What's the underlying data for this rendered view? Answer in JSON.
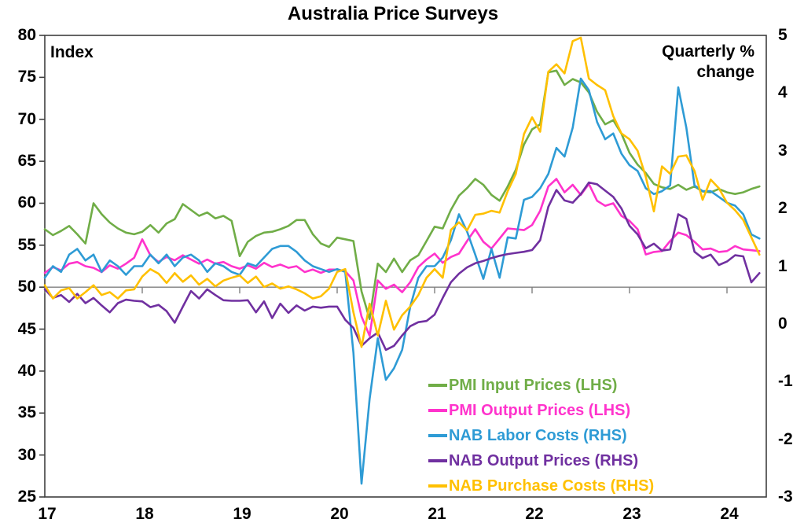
{
  "title": "Australia Price Surveys",
  "left_axis_corner_label": "Index",
  "right_axis_corner_label": "Quarterly % change",
  "chart_data": {
    "type": "line",
    "title": "Australia Price Surveys",
    "x_description": "Monthly observations, Jan 2017 to May 2024",
    "x_tick_labels": [
      "17",
      "18",
      "19",
      "20",
      "21",
      "22",
      "23",
      "24"
    ],
    "left_axis": {
      "label": "Index",
      "min": 25,
      "max": 80,
      "ticks": [
        25,
        30,
        35,
        40,
        45,
        50,
        55,
        60,
        65,
        70,
        75,
        80
      ]
    },
    "right_axis": {
      "label": "Quarterly % change",
      "min": -3,
      "max": 5,
      "ticks": [
        -3,
        -2,
        -1,
        0,
        1,
        2,
        3,
        4,
        5
      ]
    },
    "baseline_left_value": 50,
    "grid": "off",
    "legend_position": "inside-lower-right",
    "series": [
      {
        "name": "PMI Input Prices (LHS)",
        "axis": "left",
        "color": "#70AD47",
        "values": [
          56.9,
          56.2,
          56.7,
          57.3,
          56.3,
          55.2,
          60.0,
          58.7,
          57.7,
          57.0,
          56.5,
          56.3,
          56.6,
          57.4,
          56.5,
          57.6,
          58.1,
          59.9,
          59.2,
          58.5,
          58.9,
          58.2,
          58.5,
          57.9,
          53.7,
          55.4,
          56.1,
          56.5,
          56.6,
          56.9,
          57.3,
          58.0,
          58.0,
          56.3,
          55.2,
          54.8,
          55.9,
          55.7,
          55.5,
          49.5,
          46.2,
          52.8,
          51.8,
          53.4,
          51.8,
          53.2,
          53.8,
          55.5,
          57.2,
          57.0,
          59.2,
          60.9,
          61.8,
          62.9,
          62.2,
          61.0,
          60.3,
          62.0,
          64.0,
          67.0,
          68.8,
          69.4,
          75.6,
          75.8,
          74.1,
          74.8,
          74.4,
          73.2,
          70.9,
          69.4,
          69.9,
          68.3,
          66.0,
          64.6,
          63.6,
          62.3,
          61.9,
          61.7,
          62.2,
          61.6,
          62.0,
          61.4,
          61.3,
          61.7,
          61.3,
          61.1,
          61.3,
          61.7,
          62.0
        ]
      },
      {
        "name": "PMI Output Prices (LHS)",
        "axis": "left",
        "color": "#FF33CC",
        "values": [
          51.7,
          52.4,
          52.0,
          52.8,
          53.0,
          52.5,
          52.3,
          51.8,
          52.6,
          52.2,
          52.8,
          53.5,
          55.7,
          53.8,
          53.0,
          53.6,
          53.2,
          53.8,
          53.3,
          52.8,
          53.3,
          52.8,
          53.0,
          52.5,
          52.2,
          52.6,
          52.2,
          52.9,
          52.4,
          52.7,
          52.3,
          52.5,
          51.8,
          52.1,
          51.7,
          52.1,
          52.1,
          51.9,
          50.8,
          46.5,
          44.2,
          50.8,
          49.8,
          50.3,
          49.4,
          50.6,
          52.4,
          53.3,
          54.0,
          52.9,
          53.6,
          54.0,
          55.5,
          56.9,
          55.4,
          54.6,
          55.8,
          57.0,
          56.9,
          56.8,
          57.4,
          59.1,
          62.0,
          62.9,
          61.3,
          62.2,
          61.0,
          62.3,
          60.3,
          59.7,
          60.0,
          58.5,
          57.9,
          56.9,
          53.9,
          54.2,
          54.3,
          55.5,
          56.5,
          56.2,
          55.4,
          54.5,
          54.6,
          54.2,
          54.3,
          54.9,
          54.5,
          54.4,
          54.3
        ]
      },
      {
        "name": "NAB Labor Costs (RHS)",
        "axis": "right",
        "color": "#2E9BD5",
        "values": [
          0.8,
          1.0,
          0.9,
          1.2,
          1.3,
          1.1,
          1.2,
          0.9,
          1.1,
          1.0,
          0.85,
          1.0,
          1.0,
          1.2,
          1.05,
          1.2,
          1.0,
          1.15,
          1.2,
          1.1,
          0.9,
          1.05,
          1.0,
          0.9,
          0.85,
          1.05,
          1.0,
          1.15,
          1.3,
          1.35,
          1.35,
          1.25,
          1.1,
          1.0,
          0.95,
          0.9,
          0.95,
          0.9,
          -0.5,
          -2.77,
          -1.3,
          -0.25,
          -0.97,
          -0.77,
          -0.45,
          0.3,
          0.8,
          1.0,
          1.0,
          1.15,
          1.45,
          1.9,
          1.6,
          1.2,
          0.78,
          1.3,
          0.8,
          1.5,
          1.48,
          2.15,
          2.2,
          2.35,
          2.6,
          3.05,
          2.9,
          3.4,
          4.25,
          4.05,
          3.5,
          3.2,
          3.3,
          2.95,
          2.75,
          2.65,
          2.35,
          2.25,
          2.3,
          2.4,
          4.1,
          3.4,
          2.4,
          2.3,
          2.3,
          2.2,
          2.1,
          2.05,
          1.9,
          1.55,
          1.48
        ]
      },
      {
        "name": "NAB Output Prices (RHS)",
        "axis": "right",
        "color": "#7030A0",
        "values": [
          0.6,
          0.45,
          0.5,
          0.38,
          0.52,
          0.36,
          0.45,
          0.32,
          0.2,
          0.36,
          0.42,
          0.4,
          0.39,
          0.29,
          0.33,
          0.22,
          0.02,
          0.3,
          0.57,
          0.44,
          0.6,
          0.5,
          0.41,
          0.4,
          0.4,
          0.41,
          0.2,
          0.39,
          0.1,
          0.35,
          0.19,
          0.32,
          0.23,
          0.3,
          0.28,
          0.3,
          0.3,
          0.07,
          -0.07,
          -0.38,
          -0.25,
          -0.15,
          -0.45,
          -0.38,
          -0.2,
          -0.04,
          0.03,
          0.05,
          0.16,
          0.45,
          0.72,
          0.87,
          0.98,
          1.05,
          1.09,
          1.14,
          1.18,
          1.21,
          1.23,
          1.25,
          1.28,
          1.45,
          2.03,
          2.32,
          2.14,
          2.1,
          2.25,
          2.45,
          2.42,
          2.31,
          2.2,
          2.0,
          1.7,
          1.55,
          1.31,
          1.39,
          1.27,
          1.29,
          1.9,
          1.82,
          1.25,
          1.14,
          1.2,
          1.02,
          1.08,
          1.19,
          1.17,
          0.72,
          0.88
        ]
      },
      {
        "name": "NAB Purchase Costs (RHS)",
        "axis": "right",
        "color": "#FFC000",
        "values": [
          0.67,
          0.44,
          0.58,
          0.62,
          0.44,
          0.55,
          0.67,
          0.5,
          0.55,
          0.44,
          0.58,
          0.6,
          0.82,
          0.95,
          0.87,
          0.71,
          0.88,
          0.73,
          0.84,
          0.68,
          0.78,
          0.65,
          0.75,
          0.8,
          0.84,
          0.71,
          0.82,
          0.64,
          0.7,
          0.61,
          0.65,
          0.6,
          0.53,
          0.44,
          0.48,
          0.61,
          0.9,
          0.95,
          0.2,
          -0.4,
          0.35,
          -0.2,
          0.4,
          -0.1,
          0.15,
          0.3,
          0.5,
          0.8,
          0.95,
          0.8,
          1.63,
          1.76,
          1.62,
          1.89,
          1.91,
          1.96,
          1.93,
          2.3,
          2.6,
          3.29,
          3.58,
          3.33,
          4.37,
          4.5,
          4.34,
          4.9,
          4.96,
          4.25,
          4.14,
          4.05,
          3.6,
          3.3,
          3.2,
          3.0,
          2.55,
          1.95,
          2.73,
          2.6,
          2.9,
          2.92,
          2.65,
          2.15,
          2.5,
          2.35,
          2.1,
          1.97,
          1.8,
          1.5,
          1.2
        ]
      }
    ],
    "style": {
      "plot_border_color": "#3f3f3f",
      "baseline_color": "#7f7f7f",
      "background": "#ffffff",
      "line_width": 2.6
    }
  }
}
